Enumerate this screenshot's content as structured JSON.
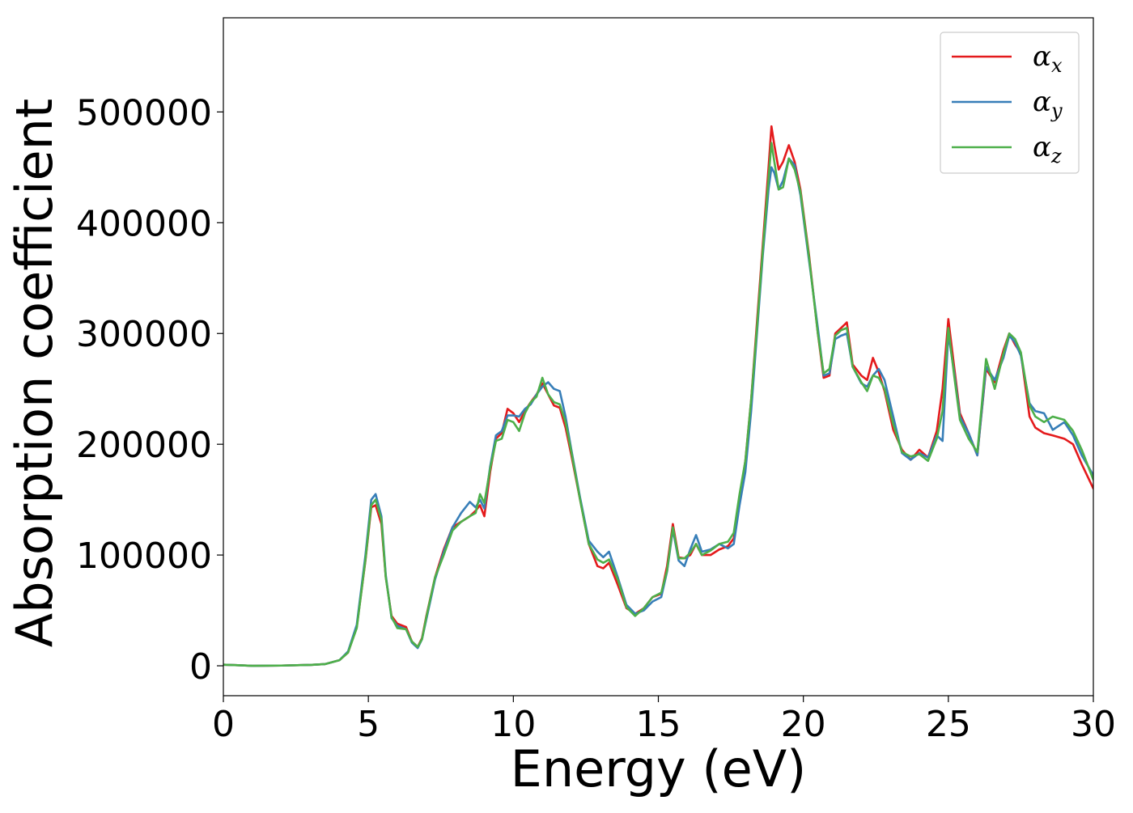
{
  "chart_data": {
    "type": "line",
    "title": "",
    "xlabel": "Energy (eV)",
    "ylabel": "Absorption coefficient",
    "xlim": [
      0,
      30
    ],
    "ylim": [
      -27000,
      585000
    ],
    "xticks": [
      0,
      5,
      10,
      15,
      20,
      25,
      30
    ],
    "yticks": [
      0,
      100000,
      200000,
      300000,
      400000,
      500000
    ],
    "grid": false,
    "legend_position": "top-right",
    "series": [
      {
        "name": "α_x",
        "legend_base": "α",
        "legend_sub": "x",
        "color": "#e41a1c",
        "x": [
          0,
          0.5,
          1,
          2,
          3,
          3.5,
          4,
          4.3,
          4.6,
          4.9,
          5.1,
          5.25,
          5.45,
          5.6,
          5.8,
          6.0,
          6.3,
          6.5,
          6.7,
          6.85,
          7.0,
          7.3,
          7.6,
          7.9,
          8.2,
          8.5,
          8.7,
          8.85,
          9.0,
          9.2,
          9.4,
          9.6,
          9.8,
          10.0,
          10.2,
          10.4,
          10.6,
          10.8,
          11.0,
          11.2,
          11.4,
          11.6,
          11.8,
          12.0,
          12.3,
          12.6,
          12.9,
          13.1,
          13.3,
          13.6,
          13.9,
          14.2,
          14.5,
          14.8,
          15.1,
          15.3,
          15.5,
          15.7,
          15.9,
          16.1,
          16.3,
          16.5,
          16.8,
          17.1,
          17.4,
          17.6,
          17.8,
          18.0,
          18.2,
          18.4,
          18.6,
          18.8,
          18.9,
          19.0,
          19.15,
          19.3,
          19.5,
          19.7,
          19.9,
          20.2,
          20.5,
          20.7,
          20.9,
          21.1,
          21.3,
          21.5,
          21.7,
          22.0,
          22.2,
          22.4,
          22.6,
          22.8,
          23.1,
          23.4,
          23.7,
          24.0,
          24.3,
          24.6,
          24.8,
          25.0,
          25.2,
          25.4,
          25.7,
          26.0,
          26.3,
          26.6,
          26.9,
          27.1,
          27.3,
          27.5,
          27.8,
          28.0,
          28.3,
          28.6,
          29.0,
          29.3,
          29.6,
          30.0
        ],
        "y": [
          1000,
          500,
          0,
          200,
          800,
          1500,
          5000,
          12000,
          35000,
          95000,
          143000,
          145000,
          128000,
          80000,
          45000,
          38000,
          35000,
          22000,
          17000,
          25000,
          45000,
          80000,
          105000,
          125000,
          130000,
          135000,
          140000,
          145000,
          135000,
          175000,
          205000,
          210000,
          232000,
          228000,
          220000,
          230000,
          238000,
          245000,
          255000,
          245000,
          235000,
          233000,
          215000,
          190000,
          150000,
          110000,
          90000,
          88000,
          93000,
          73000,
          52000,
          47000,
          52000,
          62000,
          65000,
          90000,
          128000,
          98000,
          97000,
          100000,
          110000,
          100000,
          100000,
          105000,
          108000,
          115000,
          150000,
          185000,
          240000,
          310000,
          380000,
          450000,
          487000,
          470000,
          448000,
          455000,
          470000,
          455000,
          430000,
          370000,
          300000,
          260000,
          262000,
          300000,
          305000,
          310000,
          272000,
          262000,
          258000,
          278000,
          265000,
          248000,
          213000,
          195000,
          186000,
          195000,
          188000,
          212000,
          250000,
          313000,
          270000,
          228000,
          210000,
          190000,
          268000,
          256000,
          285000,
          300000,
          290000,
          282000,
          225000,
          215000,
          210000,
          208000,
          205000,
          200000,
          182000,
          160000
        ]
      },
      {
        "name": "α_y",
        "legend_base": "α",
        "legend_sub": "y",
        "color": "#377eb8",
        "x": [
          0,
          0.5,
          1,
          2,
          3,
          3.5,
          4,
          4.3,
          4.6,
          4.9,
          5.1,
          5.25,
          5.45,
          5.6,
          5.8,
          6.0,
          6.3,
          6.5,
          6.7,
          6.85,
          7.0,
          7.3,
          7.6,
          7.9,
          8.2,
          8.5,
          8.7,
          8.85,
          9.0,
          9.2,
          9.4,
          9.6,
          9.8,
          10.0,
          10.2,
          10.4,
          10.6,
          10.8,
          11.0,
          11.2,
          11.4,
          11.6,
          11.8,
          12.0,
          12.3,
          12.6,
          12.9,
          13.1,
          13.3,
          13.6,
          13.9,
          14.2,
          14.5,
          14.8,
          15.1,
          15.3,
          15.5,
          15.7,
          15.9,
          16.1,
          16.3,
          16.5,
          16.8,
          17.1,
          17.4,
          17.6,
          17.8,
          18.0,
          18.2,
          18.4,
          18.6,
          18.8,
          18.9,
          19.0,
          19.15,
          19.3,
          19.5,
          19.7,
          19.9,
          20.2,
          20.5,
          20.7,
          20.9,
          21.1,
          21.3,
          21.5,
          21.7,
          22.0,
          22.2,
          22.4,
          22.6,
          22.8,
          23.1,
          23.4,
          23.7,
          24.0,
          24.3,
          24.6,
          24.8,
          25.0,
          25.2,
          25.4,
          25.7,
          26.0,
          26.3,
          26.6,
          26.9,
          27.1,
          27.3,
          27.5,
          27.8,
          28.0,
          28.3,
          28.6,
          29.0,
          29.3,
          29.6,
          30.0
        ],
        "y": [
          1000,
          500,
          0,
          200,
          800,
          1500,
          5000,
          13000,
          37000,
          100000,
          150000,
          155000,
          135000,
          82000,
          43000,
          36000,
          33000,
          21000,
          16000,
          24000,
          42000,
          78000,
          103000,
          125000,
          138000,
          148000,
          143000,
          150000,
          142000,
          180000,
          208000,
          212000,
          226000,
          226000,
          225000,
          232000,
          236000,
          245000,
          252000,
          256000,
          250000,
          248000,
          225000,
          195000,
          152000,
          113000,
          103000,
          98000,
          103000,
          80000,
          55000,
          47000,
          50000,
          58000,
          62000,
          85000,
          123000,
          95000,
          90000,
          105000,
          118000,
          103000,
          105000,
          110000,
          106000,
          110000,
          145000,
          175000,
          230000,
          300000,
          370000,
          430000,
          450000,
          445000,
          430000,
          438000,
          458000,
          452000,
          425000,
          365000,
          305000,
          262000,
          264000,
          295000,
          298000,
          300000,
          270000,
          255000,
          252000,
          262000,
          268000,
          258000,
          225000,
          192000,
          186000,
          192000,
          188000,
          208000,
          203000,
          300000,
          265000,
          225000,
          210000,
          190000,
          270000,
          258000,
          278000,
          298000,
          292000,
          280000,
          237000,
          230000,
          228000,
          213000,
          220000,
          208000,
          190000,
          172000
        ]
      },
      {
        "name": "α_z",
        "legend_base": "α",
        "legend_sub": "z",
        "color": "#4daf4a",
        "x": [
          0,
          0.5,
          1,
          2,
          3,
          3.5,
          4,
          4.3,
          4.6,
          4.9,
          5.1,
          5.25,
          5.45,
          5.6,
          5.8,
          6.0,
          6.3,
          6.5,
          6.7,
          6.85,
          7.0,
          7.3,
          7.6,
          7.9,
          8.2,
          8.5,
          8.7,
          8.85,
          9.0,
          9.2,
          9.4,
          9.6,
          9.8,
          10.0,
          10.2,
          10.4,
          10.6,
          10.8,
          11.0,
          11.2,
          11.4,
          11.6,
          11.8,
          12.0,
          12.3,
          12.6,
          12.9,
          13.1,
          13.3,
          13.6,
          13.9,
          14.2,
          14.5,
          14.8,
          15.1,
          15.3,
          15.5,
          15.7,
          15.9,
          16.1,
          16.3,
          16.5,
          16.8,
          17.1,
          17.4,
          17.6,
          17.8,
          18.0,
          18.2,
          18.4,
          18.6,
          18.8,
          18.9,
          19.0,
          19.15,
          19.3,
          19.5,
          19.7,
          19.9,
          20.2,
          20.5,
          20.7,
          20.9,
          21.1,
          21.3,
          21.5,
          21.7,
          22.0,
          22.2,
          22.4,
          22.6,
          22.8,
          23.1,
          23.4,
          23.7,
          24.0,
          24.3,
          24.6,
          24.8,
          25.0,
          25.2,
          25.4,
          25.7,
          26.0,
          26.3,
          26.6,
          26.9,
          27.1,
          27.3,
          27.5,
          27.8,
          28.0,
          28.3,
          28.6,
          29.0,
          29.3,
          29.6,
          30.0
        ],
        "y": [
          1000,
          500,
          0,
          200,
          800,
          1500,
          5000,
          12000,
          34000,
          96000,
          145000,
          150000,
          132000,
          80000,
          44000,
          34000,
          33000,
          22000,
          17000,
          24000,
          44000,
          80000,
          100000,
          122000,
          130000,
          135000,
          138000,
          155000,
          147000,
          178000,
          203000,
          205000,
          222000,
          220000,
          212000,
          228000,
          238000,
          243000,
          260000,
          245000,
          238000,
          236000,
          220000,
          193000,
          150000,
          110000,
          96000,
          93000,
          96000,
          78000,
          53000,
          45000,
          52000,
          62000,
          66000,
          86000,
          125000,
          97000,
          97000,
          102000,
          110000,
          100000,
          104000,
          110000,
          112000,
          120000,
          155000,
          185000,
          240000,
          305000,
          375000,
          440000,
          472000,
          455000,
          430000,
          432000,
          458000,
          448000,
          428000,
          368000,
          300000,
          264000,
          268000,
          298000,
          303000,
          305000,
          270000,
          256000,
          248000,
          262000,
          260000,
          250000,
          218000,
          193000,
          189000,
          191000,
          185000,
          205000,
          230000,
          305000,
          262000,
          222000,
          205000,
          193000,
          277000,
          250000,
          282000,
          300000,
          295000,
          283000,
          235000,
          225000,
          220000,
          225000,
          222000,
          212000,
          195000,
          168000
        ]
      }
    ]
  }
}
